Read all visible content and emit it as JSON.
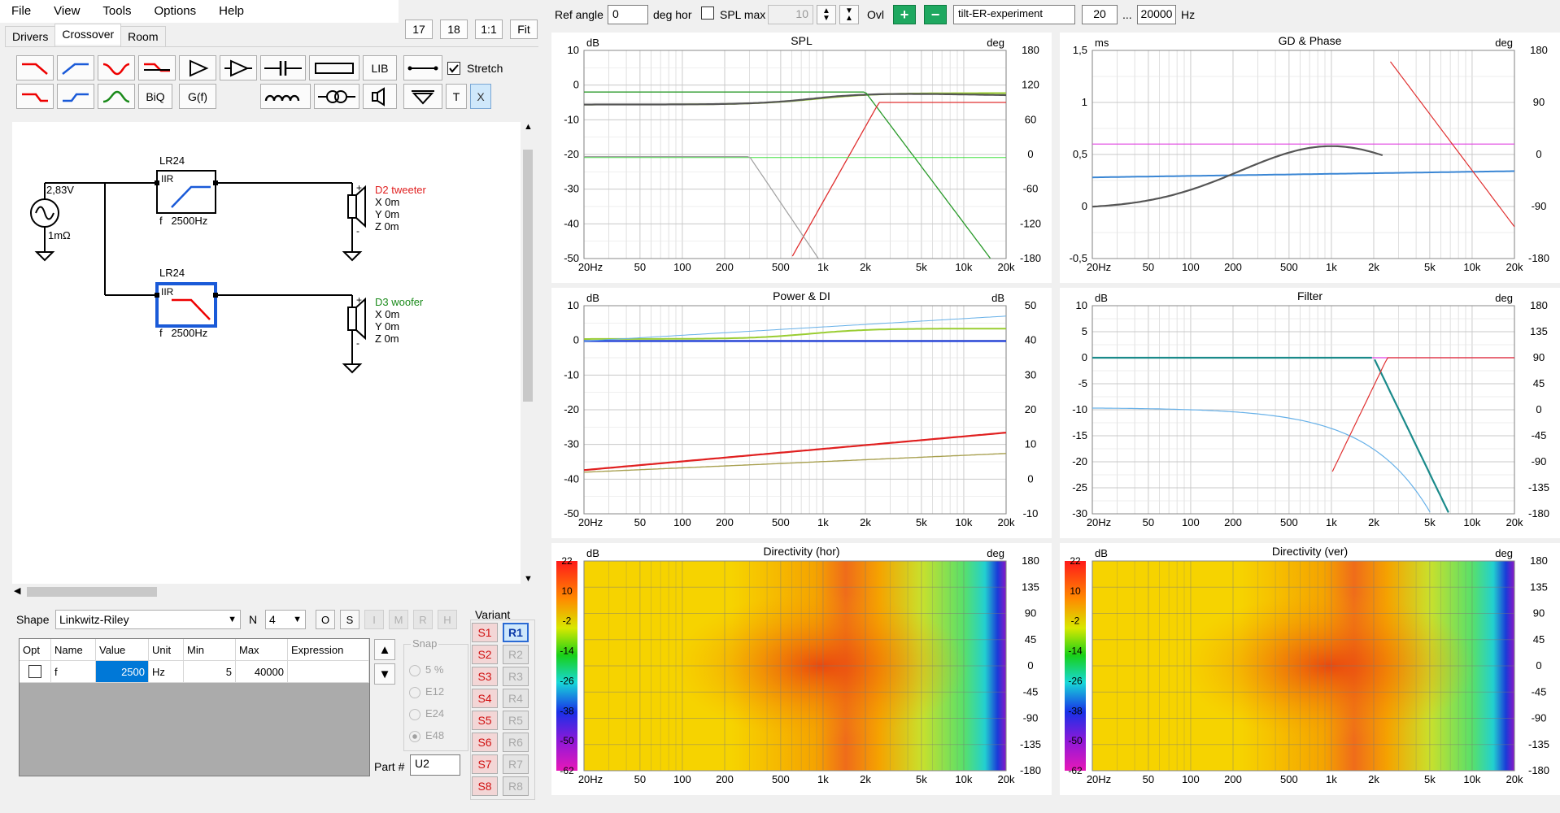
{
  "menu": [
    "File",
    "View",
    "Tools",
    "Options",
    "Help"
  ],
  "top_buttons": {
    "b1": "17",
    "b2": "18",
    "b3": "1:1",
    "b4": "Fit"
  },
  "tabs": [
    "Drivers",
    "Crossover",
    "Room"
  ],
  "toolbar": {
    "lib": "LIB",
    "biq": "BiQ",
    "gf": "G(f)",
    "t": "T",
    "x": "X",
    "stretch": "Stretch"
  },
  "schematic": {
    "source_voltage": "2,83V",
    "source_impedance": "1mΩ",
    "filter1": {
      "type": "LR24",
      "mode": "IIR",
      "freq": "f   2500Hz"
    },
    "filter2": {
      "type": "LR24",
      "mode": "IIR",
      "freq": "f   2500Hz"
    },
    "driver1": {
      "name": "D2 tweeter",
      "x": "X 0m",
      "y": "Y 0m",
      "z": "Z 0m",
      "color": "#e02020"
    },
    "driver2": {
      "name": "D3 woofer",
      "x": "X 0m",
      "y": "Y 0m",
      "z": "Z 0m",
      "color": "#1a8a1a"
    }
  },
  "shape": {
    "label": "Shape",
    "value": "Linkwitz-Riley",
    "n_label": "N",
    "n_value": "4",
    "btns": [
      "O",
      "S",
      "I",
      "M",
      "R",
      "H"
    ]
  },
  "param_table": {
    "headers": [
      "Opt",
      "Name",
      "Value",
      "Unit",
      "Min",
      "Max",
      "Expression"
    ],
    "row": {
      "name": "f",
      "value": "2500",
      "unit": "Hz",
      "min": "5",
      "max": "40000",
      "expression": ""
    }
  },
  "snap": {
    "label": "Snap",
    "options": [
      "5 %",
      "E12",
      "E24",
      "E48"
    ]
  },
  "part": {
    "label": "Part #",
    "value": "U2"
  },
  "variant": {
    "label": "Variant",
    "s": [
      "S1",
      "S2",
      "S3",
      "S4",
      "S5",
      "S6",
      "S7",
      "S8"
    ],
    "r": [
      "R1",
      "R2",
      "R3",
      "R4",
      "R5",
      "R6",
      "R7",
      "R8"
    ]
  },
  "topbar": {
    "ref_angle_label": "Ref angle",
    "ref_angle_value": "0",
    "deg_hor": "deg hor",
    "spl_max_label": "SPL max",
    "spl_max_value": "10",
    "ovl": "Ovl",
    "name_value": "tilt-ER-experiment",
    "f_low": "20",
    "dots": "...",
    "f_high": "20000",
    "hz": "Hz"
  },
  "graphs": {
    "spl": {
      "title": "SPL",
      "left_unit": "dB",
      "right_unit": "deg",
      "left_ticks": [
        "10",
        "0",
        "-10",
        "-20",
        "-30",
        "-40",
        "-50"
      ],
      "right_ticks": [
        "180",
        "120",
        "60",
        "0",
        "-60",
        "-120",
        "-180"
      ]
    },
    "gd": {
      "title": "GD & Phase",
      "left_unit": "ms",
      "right_unit": "deg",
      "left_ticks": [
        "1,5",
        "1",
        "0,5",
        "0",
        "-0,5"
      ],
      "right_ticks": [
        "180",
        "90",
        "0",
        "-90",
        "-180"
      ]
    },
    "power": {
      "title": "Power & DI",
      "left_unit": "dB",
      "right_unit": "dB",
      "left_ticks": [
        "10",
        "0",
        "-10",
        "-20",
        "-30",
        "-40",
        "-50"
      ],
      "right_ticks": [
        "50",
        "40",
        "30",
        "20",
        "10",
        "0",
        "-10"
      ]
    },
    "filter": {
      "title": "Filter",
      "left_unit": "dB",
      "right_unit": "deg",
      "left_ticks": [
        "10",
        "5",
        "0",
        "-5",
        "-10",
        "-15",
        "-20",
        "-25",
        "-30"
      ],
      "right_ticks": [
        "180",
        "135",
        "90",
        "45",
        "0",
        "-45",
        "-90",
        "-135",
        "-180"
      ]
    },
    "dirh": {
      "title": "Directivity (hor)",
      "left_unit": "dB",
      "right_unit": "deg",
      "scale_ticks": [
        "22",
        "10",
        "-2",
        "-14",
        "-26",
        "-38",
        "-50",
        "-62"
      ],
      "right_ticks": [
        "180",
        "135",
        "90",
        "45",
        "0",
        "-45",
        "-90",
        "-135",
        "-180"
      ]
    },
    "dirv": {
      "title": "Directivity (ver)",
      "left_unit": "dB",
      "right_unit": "deg",
      "scale_ticks": [
        "22",
        "10",
        "-2",
        "-14",
        "-26",
        "-38",
        "-50",
        "-62"
      ],
      "right_ticks": [
        "180",
        "135",
        "90",
        "45",
        "0",
        "-45",
        "-90",
        "-135",
        "-180"
      ]
    },
    "freq_ticks": [
      "20Hz",
      "50",
      "100",
      "200",
      "500",
      "1k",
      "2k",
      "5k",
      "10k",
      "20k"
    ]
  },
  "colors": {
    "accent": "#0078d7",
    "tweeter": "#e02020",
    "woofer": "#1a8a1a"
  }
}
